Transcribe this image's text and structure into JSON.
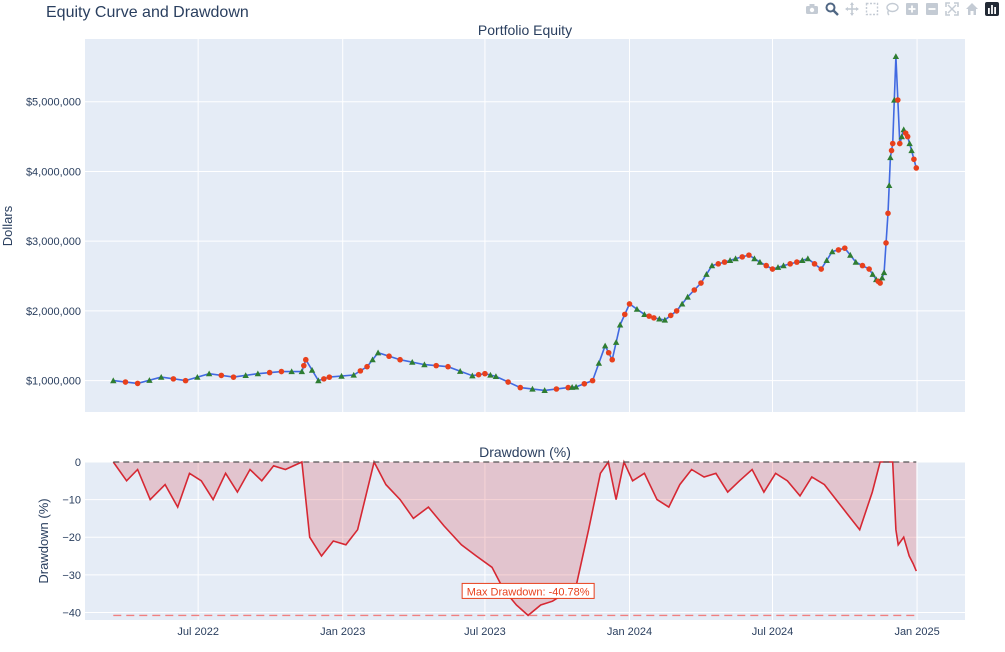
{
  "title": "Equity Curve and Drawdown",
  "modebar": {
    "icons": [
      "camera-icon",
      "zoom-icon",
      "pan-icon",
      "box-select-icon",
      "lasso-icon",
      "zoom-in-icon",
      "zoom-out-icon",
      "autoscale-icon",
      "home-icon",
      "plotly-logo-icon"
    ]
  },
  "colors": {
    "plot_bg": "#e5ecf6",
    "grid": "#ffffff",
    "equity_line": "#4169e1",
    "buy_marker": "#2e7d32",
    "sell_marker": "#e8401c",
    "drawdown_line": "#d62833",
    "drawdown_fill": "rgba(214,40,51,0.2)",
    "max_dd_line": "#f08080",
    "zero_line": "#555555"
  },
  "chart_data": [
    {
      "type": "line",
      "title": "Portfolio Equity",
      "ylabel": "Dollars",
      "xlabel": "",
      "ylim": [
        550000,
        5900000
      ],
      "xlim": [
        "2022-02-07",
        "2025-03-03"
      ],
      "grid": true,
      "y_ticks": [
        {
          "value": 1000000,
          "label": "$1,000,000"
        },
        {
          "value": 2000000,
          "label": "$2,000,000"
        },
        {
          "value": 3000000,
          "label": "$3,000,000"
        },
        {
          "value": 4000000,
          "label": "$4,000,000"
        },
        {
          "value": 5000000,
          "label": "$5,000,000"
        }
      ],
      "series": [
        {
          "x": [
            "2022-03-15",
            "2022-04-15",
            "2022-05-15",
            "2022-06-15",
            "2022-07-15",
            "2022-08-15",
            "2022-09-15",
            "2022-10-15",
            "2022-11-10",
            "2022-11-15",
            "2022-12-01",
            "2022-12-15",
            "2023-01-15",
            "2023-02-01",
            "2023-02-15",
            "2023-03-15",
            "2023-04-15",
            "2023-05-15",
            "2023-06-15",
            "2023-07-01",
            "2023-07-15",
            "2023-08-15",
            "2023-09-15",
            "2023-10-15",
            "2023-10-25",
            "2023-11-15",
            "2023-12-01",
            "2023-12-10",
            "2023-12-20",
            "2024-01-01",
            "2024-01-20",
            "2024-02-01",
            "2024-02-15",
            "2024-03-01",
            "2024-03-15",
            "2024-04-01",
            "2024-04-15",
            "2024-05-01",
            "2024-05-15",
            "2024-06-01",
            "2024-06-15",
            "2024-07-01",
            "2024-07-15",
            "2024-08-01",
            "2024-08-15",
            "2024-09-01",
            "2024-09-15",
            "2024-10-01",
            "2024-10-15",
            "2024-11-01",
            "2024-11-10",
            "2024-11-15",
            "2024-11-20",
            "2024-11-25",
            "2024-11-28",
            "2024-12-01",
            "2024-12-05",
            "2024-12-10",
            "2024-12-15",
            "2024-12-20",
            "2024-12-25",
            "2024-12-31"
          ],
          "y": [
            1000000,
            960000,
            1050000,
            1000000,
            1100000,
            1050000,
            1100000,
            1130000,
            1130000,
            1300000,
            1000000,
            1050000,
            1080000,
            1200000,
            1400000,
            1300000,
            1230000,
            1200000,
            1070000,
            1100000,
            1060000,
            900000,
            860000,
            900000,
            910000,
            1000000,
            1500000,
            1300000,
            1800000,
            2100000,
            1950000,
            1900000,
            1870000,
            2000000,
            2200000,
            2400000,
            2650000,
            2700000,
            2750000,
            2800000,
            2700000,
            2600000,
            2650000,
            2700000,
            2750000,
            2600000,
            2850000,
            2900000,
            2700000,
            2600000,
            2450000,
            2400000,
            2550000,
            3400000,
            4200000,
            4400000,
            5650000,
            4400000,
            4600000,
            4500000,
            4300000,
            4050000
          ],
          "color": "#4169e1"
        }
      ]
    },
    {
      "type": "area",
      "title": "Drawdown (%)",
      "ylabel": "Drawdown (%)",
      "xlabel": "",
      "ylim": [
        -42,
        0
      ],
      "xlim": [
        "2022-02-07",
        "2025-03-03"
      ],
      "grid": true,
      "y_ticks": [
        {
          "value": 0,
          "label": "0"
        },
        {
          "value": -10,
          "label": "−10"
        },
        {
          "value": -20,
          "label": "−20"
        },
        {
          "value": -30,
          "label": "−30"
        },
        {
          "value": -40,
          "label": "−40"
        }
      ],
      "x_ticks": [
        {
          "value": "2022-07-01",
          "label": "Jul 2022"
        },
        {
          "value": "2023-01-01",
          "label": "Jan 2023"
        },
        {
          "value": "2023-07-01",
          "label": "Jul 2023"
        },
        {
          "value": "2024-01-01",
          "label": "Jan 2024"
        },
        {
          "value": "2024-07-01",
          "label": "Jul 2024"
        },
        {
          "value": "2025-01-01",
          "label": "Jan 2025"
        }
      ],
      "series": [
        {
          "x": [
            "2022-03-15",
            "2022-04-01",
            "2022-04-15",
            "2022-05-01",
            "2022-05-20",
            "2022-06-05",
            "2022-06-20",
            "2022-07-05",
            "2022-07-20",
            "2022-08-05",
            "2022-08-20",
            "2022-09-05",
            "2022-09-20",
            "2022-10-05",
            "2022-10-20",
            "2022-11-10",
            "2022-11-20",
            "2022-12-05",
            "2022-12-20",
            "2023-01-05",
            "2023-01-20",
            "2023-02-10",
            "2023-02-25",
            "2023-03-15",
            "2023-04-01",
            "2023-04-20",
            "2023-05-10",
            "2023-06-01",
            "2023-06-20",
            "2023-07-10",
            "2023-07-25",
            "2023-08-10",
            "2023-08-25",
            "2023-09-10",
            "2023-09-25",
            "2023-10-10",
            "2023-10-25",
            "2023-11-10",
            "2023-11-25",
            "2023-12-05",
            "2023-12-15",
            "2023-12-25",
            "2024-01-05",
            "2024-01-20",
            "2024-02-05",
            "2024-02-20",
            "2024-03-05",
            "2024-03-20",
            "2024-04-05",
            "2024-04-20",
            "2024-05-05",
            "2024-05-20",
            "2024-06-05",
            "2024-06-20",
            "2024-07-05",
            "2024-07-20",
            "2024-08-05",
            "2024-08-20",
            "2024-09-05",
            "2024-09-20",
            "2024-10-05",
            "2024-10-20",
            "2024-11-05",
            "2024-11-15",
            "2024-11-25",
            "2024-12-01",
            "2024-12-05",
            "2024-12-08",
            "2024-12-15",
            "2024-12-22",
            "2024-12-27",
            "2024-12-31"
          ],
          "y": [
            0,
            -5,
            -2,
            -10,
            -6,
            -12,
            -3,
            -5,
            -10,
            -3,
            -8,
            -2,
            -5,
            -1,
            -2,
            0,
            -20,
            -25,
            -21,
            -22,
            -18,
            0,
            -6,
            -10,
            -15,
            -12,
            -17,
            -22,
            -25,
            -28,
            -34,
            -38,
            -40.78,
            -38,
            -37,
            -35,
            -33,
            -18,
            -3,
            0,
            -10,
            0,
            -5,
            -3,
            -10,
            -12,
            -6,
            -2,
            -4,
            -3,
            -8,
            -5,
            -2,
            -8,
            -3,
            -5,
            -9,
            -4,
            -6,
            -10,
            -14,
            -18,
            -8,
            0,
            0,
            0,
            -18,
            -22,
            -20,
            -25,
            -27,
            -29
          ],
          "color": "#d62833"
        }
      ],
      "reference_lines": [
        {
          "value": 0,
          "style": "dashed"
        },
        {
          "value": -40.78,
          "style": "dashed"
        }
      ],
      "annotation": {
        "text": "Max Drawdown: -40.78%",
        "x": "2023-08-25",
        "y": -40.78
      }
    }
  ]
}
